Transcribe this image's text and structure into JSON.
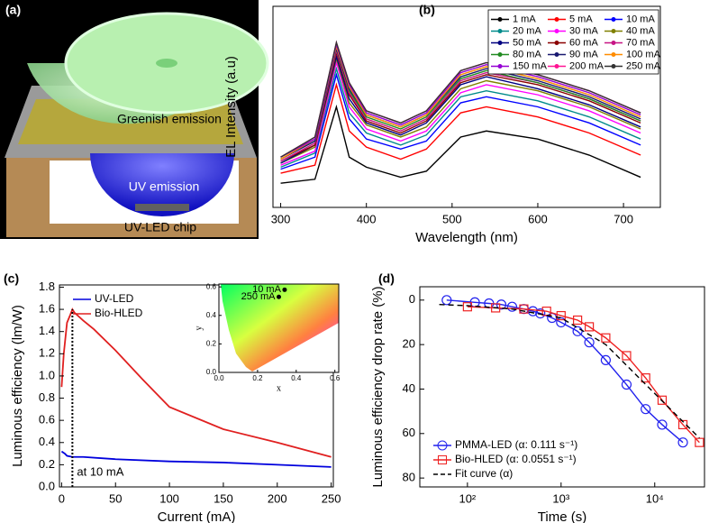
{
  "illustration": {
    "panel_label": "(a)",
    "labels": [
      "Greenish emission",
      "UV emission",
      "UV-LED chip"
    ]
  },
  "chart_data": [
    {
      "type": "line",
      "panel_label": "(b)",
      "xlabel": "Wavelength (nm)",
      "ylabel": "EL Intensity (a.u)",
      "xlim": [
        291,
        743
      ],
      "ylim": [
        0,
        100
      ],
      "xticks": [
        300,
        400,
        500,
        600,
        700
      ],
      "legend": "upper right",
      "x": [
        300,
        340,
        365,
        380,
        400,
        440,
        470,
        510,
        540,
        600,
        660,
        720
      ],
      "series": [
        {
          "name": "1 mA",
          "color": "#000000",
          "values": [
            12,
            14,
            50,
            25,
            20,
            15,
            18,
            35,
            38,
            34,
            26,
            15
          ]
        },
        {
          "name": "5 mA",
          "color": "#ff0000",
          "values": [
            17,
            21,
            61,
            38,
            30,
            24,
            29,
            47,
            50,
            45,
            37,
            26
          ]
        },
        {
          "name": "10 mA",
          "color": "#0000ff",
          "values": [
            19,
            25,
            66,
            44,
            34,
            29,
            33,
            52,
            55,
            50,
            42,
            31
          ]
        },
        {
          "name": "20 mA",
          "color": "#008b8b",
          "values": [
            20,
            27,
            69,
            47,
            37,
            31,
            36,
            55,
            58,
            53,
            45,
            34
          ]
        },
        {
          "name": "30 mA",
          "color": "#ff00ff",
          "values": [
            21,
            28,
            72,
            50,
            39,
            33,
            38,
            57,
            61,
            56,
            48,
            37
          ]
        },
        {
          "name": "40 mA",
          "color": "#808000",
          "values": [
            22,
            30,
            74,
            52,
            41,
            35,
            40,
            59,
            63,
            58,
            50,
            39
          ]
        },
        {
          "name": "50 mA",
          "color": "#000080",
          "values": [
            22,
            31,
            75,
            54,
            42,
            36,
            42,
            61,
            65,
            59,
            51,
            40
          ]
        },
        {
          "name": "60 mA",
          "color": "#8b0000",
          "values": [
            23,
            31,
            77,
            56,
            43,
            37,
            43,
            62,
            66,
            61,
            53,
            42
          ]
        },
        {
          "name": "70 mA",
          "color": "#c71585",
          "values": [
            23,
            32,
            78,
            57,
            44,
            38,
            44,
            63,
            67,
            62,
            54,
            43
          ]
        },
        {
          "name": "80 mA",
          "color": "#228b22",
          "values": [
            24,
            33,
            79,
            58,
            45,
            39,
            45,
            64,
            68,
            62,
            54,
            43
          ]
        },
        {
          "name": "90 mA",
          "color": "#191970",
          "values": [
            24,
            33,
            79,
            59,
            46,
            40,
            46,
            65,
            69,
            63,
            55,
            44
          ]
        },
        {
          "name": "100 mA",
          "color": "#ff8c00",
          "values": [
            24,
            34,
            80,
            60,
            46,
            40,
            46,
            66,
            70,
            64,
            56,
            45
          ]
        },
        {
          "name": "150 mA",
          "color": "#9400d3",
          "values": [
            25,
            34,
            81,
            61,
            47,
            41,
            47,
            67,
            71,
            65,
            57,
            46
          ]
        },
        {
          "name": "200 mA",
          "color": "#ff1493",
          "values": [
            25,
            35,
            82,
            62,
            48,
            42,
            48,
            68,
            72,
            66,
            58,
            47
          ]
        },
        {
          "name": "250 mA",
          "color": "#333333",
          "values": [
            25,
            35,
            82,
            62,
            48,
            42,
            48,
            68,
            72,
            66,
            58,
            47
          ]
        }
      ]
    },
    {
      "type": "line",
      "panel_label": "(c)",
      "xlabel": "Current (mA)",
      "ylabel": "Luminous efficiency (lm/W)",
      "xlim": [
        -2,
        252
      ],
      "ylim": [
        0,
        1.82
      ],
      "xticks": [
        0,
        50,
        100,
        150,
        200,
        250
      ],
      "yticks": [
        {
          "value": 0,
          "label": "0.0"
        },
        0.2,
        0.4,
        0.6,
        0.8,
        {
          "value": 1,
          "label": "1.0"
        },
        1.2,
        1.4,
        1.6,
        1.8
      ],
      "legend": "upper left",
      "annotation": "at 10 mA",
      "reference_line_x": 10,
      "series": [
        {
          "name": "UV-LED",
          "color": "#0000dd",
          "x": [
            0,
            3,
            5,
            10,
            20,
            50,
            100,
            150,
            200,
            250
          ],
          "values": [
            0.32,
            0.3,
            0.28,
            0.27,
            0.27,
            0.25,
            0.23,
            0.22,
            0.2,
            0.18
          ]
        },
        {
          "name": "Bio-HLED",
          "color": "#e02020",
          "x": [
            0,
            2,
            5,
            8,
            10,
            12,
            20,
            30,
            50,
            75,
            100,
            150,
            200,
            250
          ],
          "values": [
            0.9,
            1.2,
            1.48,
            1.55,
            1.6,
            1.57,
            1.5,
            1.42,
            1.23,
            0.97,
            0.72,
            0.52,
            0.4,
            0.27
          ]
        }
      ],
      "inset": {
        "xlabel": "x",
        "ylabel": "y",
        "xlim": [
          0,
          0.62
        ],
        "ylim": [
          0,
          0.62
        ],
        "xticks": [
          {
            "value": 0,
            "label": "0.0"
          },
          0.2,
          0.4,
          0.6
        ],
        "yticks": [
          {
            "value": 0,
            "label": "0.0"
          },
          0.2,
          0.4,
          0.6
        ],
        "labels": [
          "10 mA",
          "250 mA"
        ],
        "x": [
          0.34,
          0.31
        ],
        "y": [
          0.58,
          0.53
        ]
      }
    },
    {
      "type": "scatter",
      "panel_label": "(d)",
      "xlabel": "Time (s)",
      "ylabel": "Luminous efficiency drop rate (%)",
      "xscale": "log",
      "y_inverted": true,
      "xlim": [
        31,
        34000
      ],
      "ylim": [
        -6,
        84
      ],
      "xticks": [
        {
          "value": 100,
          "label": "10²"
        },
        {
          "value": 1000,
          "label": "10³"
        },
        {
          "value": 10000,
          "label": "10⁴"
        }
      ],
      "yticks": [
        0,
        20,
        40,
        60,
        80
      ],
      "legend": "lower left",
      "series": [
        {
          "name": "PMMA-LED (α: 0.111 s⁻¹)",
          "color": "#2222ee",
          "marker": "circle",
          "x": [
            60,
            120,
            170,
            230,
            300,
            400,
            500,
            600,
            800,
            1000,
            1500,
            2000,
            3000,
            5000,
            8000,
            12000,
            20000
          ],
          "values": [
            0,
            1,
            1.5,
            2,
            3,
            4,
            5,
            6,
            8,
            10,
            14,
            19,
            27,
            38,
            49,
            56,
            64
          ]
        },
        {
          "name": "Bio-HLED (α: 0.0551 s⁻¹)",
          "color": "#ee2222",
          "marker": "square",
          "x": [
            100,
            200,
            400,
            700,
            1000,
            1500,
            2000,
            3000,
            5000,
            8000,
            12000,
            20000,
            30000
          ],
          "values": [
            3,
            3.5,
            4,
            5,
            7,
            9,
            12,
            17,
            25,
            35,
            45,
            56,
            64
          ]
        },
        {
          "name": "Fit curve (α)",
          "color": "#000000",
          "marker": "dash",
          "x": [
            50,
            100,
            300,
            1000,
            3000,
            10000,
            30000
          ],
          "values": [
            2,
            2.5,
            4,
            8,
            20,
            42,
            62
          ]
        }
      ]
    }
  ]
}
